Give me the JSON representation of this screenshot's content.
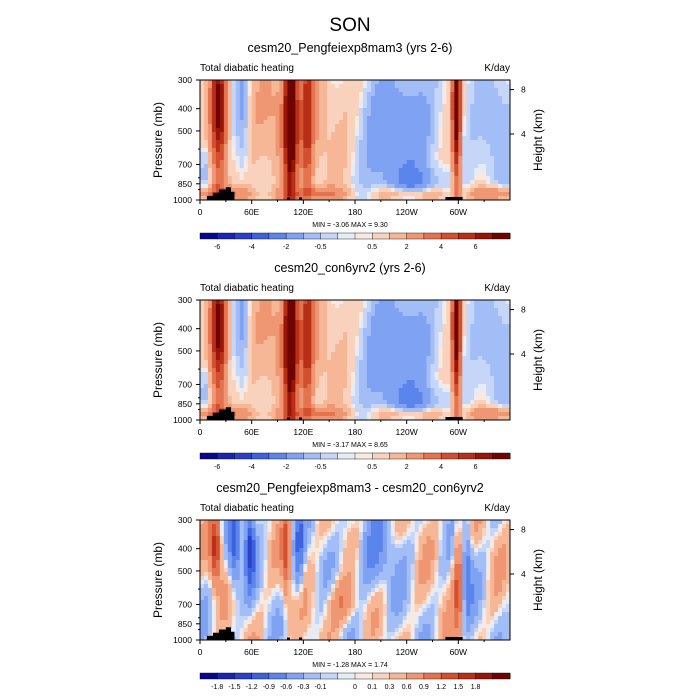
{
  "page": {
    "title": "SON"
  },
  "palette": {
    "full": [
      "#08088c",
      "#1b23b4",
      "#2b40c8",
      "#3e62de",
      "#5b84ec",
      "#7fa2f3",
      "#a3bef7",
      "#c6d6f8",
      "#e6ecf6",
      "#f8e9e1",
      "#f9d2bd",
      "#f6b797",
      "#ef9672",
      "#e47450",
      "#d2502f",
      "#b82e17",
      "#971509",
      "#6f0500"
    ],
    "diff": [
      "#08088c",
      "#1b23b4",
      "#2b40c8",
      "#3e62de",
      "#5b84ec",
      "#7fa2f3",
      "#a3bef7",
      "#c6d6f8",
      "#e6ecf6",
      "#f8e9e1",
      "#f9d2bd",
      "#f6b797",
      "#ef9672",
      "#e47450",
      "#d2502f",
      "#b82e17",
      "#971509",
      "#6f0500"
    ]
  },
  "chart_data": [
    {
      "type": "heatmap",
      "title": "cesm20_Pengfeiexp8mam3 (yrs 2-6)",
      "subtitle_left": "Total diabatic heating",
      "units": "K/day",
      "ylabel": "Pressure (mb)",
      "ylabel_right": "Height (km)",
      "x_ticks": [
        "0",
        "60E",
        "120E",
        "180",
        "120W",
        "60W"
      ],
      "y_ticks": [
        "300",
        "400",
        "500",
        "700",
        "850",
        "1000"
      ],
      "y_ticks_right": [
        "8",
        "4"
      ],
      "stats_text": "MIN =  -3.06  MAX =  9.30",
      "colorbar_labels": [
        "-6",
        "-4",
        "-2",
        "-0.5",
        "0.5",
        "2",
        "4",
        "6"
      ],
      "palette": "full",
      "field": "mean"
    },
    {
      "type": "heatmap",
      "title": "cesm20_con6yrv2 (yrs 2-6)",
      "subtitle_left": "Total diabatic heating",
      "units": "K/day",
      "ylabel": "Pressure (mb)",
      "ylabel_right": "Height (km)",
      "x_ticks": [
        "0",
        "60E",
        "120E",
        "180",
        "120W",
        "60W"
      ],
      "y_ticks": [
        "300",
        "400",
        "500",
        "700",
        "850",
        "1000"
      ],
      "y_ticks_right": [
        "8",
        "4"
      ],
      "stats_text": "MIN =  -3.17  MAX =  8.65",
      "colorbar_labels": [
        "-6",
        "-4",
        "-2",
        "-0.5",
        "0.5",
        "2",
        "4",
        "6"
      ],
      "palette": "full",
      "field": "mean"
    },
    {
      "type": "heatmap",
      "title": "cesm20_Pengfeiexp8mam3 - cesm20_con6yrv2",
      "subtitle_left": "Total diabatic heating",
      "units": "K/day",
      "ylabel": "Pressure (mb)",
      "ylabel_right": "Height (km)",
      "x_ticks": [
        "0",
        "60E",
        "120E",
        "180",
        "120W",
        "60W"
      ],
      "y_ticks": [
        "300",
        "400",
        "500",
        "700",
        "850",
        "1000"
      ],
      "y_ticks_right": [
        "8",
        "4"
      ],
      "stats_text": "MIN =  -1.28  MAX =  1.74",
      "colorbar_labels": [
        "-1.8",
        "-1.5",
        "-1.2",
        "-0.9",
        "-0.6",
        "-0.3",
        "-0.1",
        "0",
        "0.1",
        "0.3",
        "0.6",
        "0.9",
        "1.2",
        "1.5",
        "1.8"
      ],
      "palette": "diff",
      "field": "diff"
    }
  ]
}
